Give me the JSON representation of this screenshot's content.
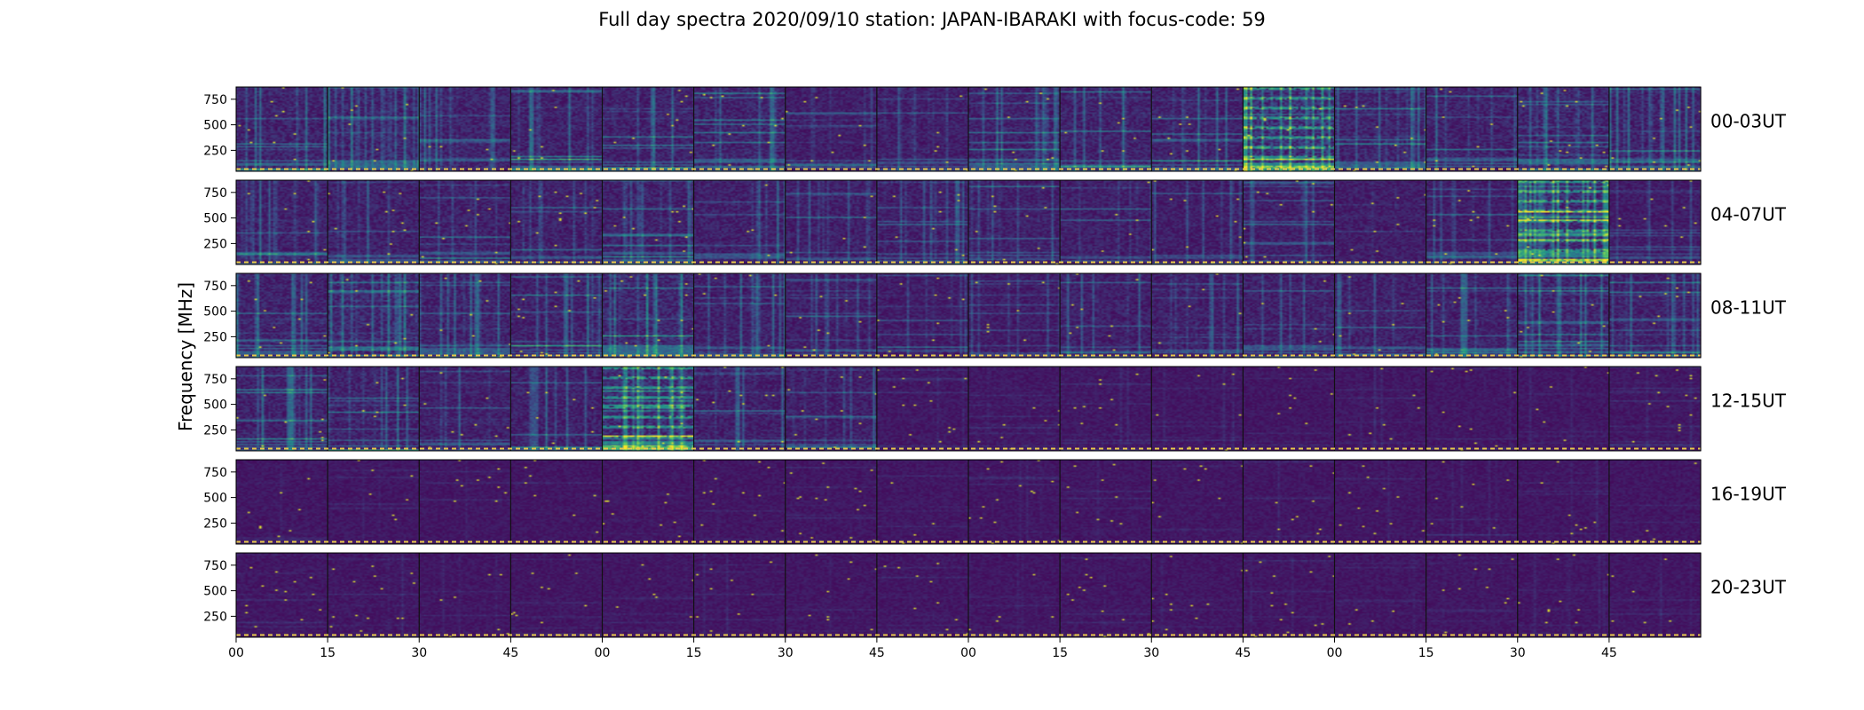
{
  "chart_data": {
    "type": "heatmap",
    "title": "Full day spectra 2020/09/10 station: JAPAN-IBARAKI with focus-code: 59",
    "ylabel": "Frequency [MHz]",
    "xlabel": "",
    "y_ticks": [
      250,
      500,
      750
    ],
    "ylim": [
      45,
      870
    ],
    "x_tick_labels": [
      "00",
      "15",
      "30",
      "45",
      "00",
      "15",
      "30",
      "45",
      "00",
      "15",
      "30",
      "45",
      "00",
      "15",
      "30",
      "45"
    ],
    "colormap": [
      "#440154",
      "#3b528b",
      "#21918c",
      "#5ec962",
      "#fde725"
    ],
    "grid": false,
    "segments_per_row": 16,
    "rows": [
      {
        "label": "00-03UT",
        "activity": [
          0.55,
          0.55,
          0.5,
          0.5,
          0.5,
          0.55,
          0.35,
          0.4,
          0.5,
          0.5,
          0.45,
          0.9,
          0.5,
          0.5,
          0.6,
          0.5
        ]
      },
      {
        "label": "04-07UT",
        "activity": [
          0.45,
          0.45,
          0.45,
          0.45,
          0.45,
          0.45,
          0.4,
          0.4,
          0.4,
          0.4,
          0.35,
          0.4,
          0.35,
          0.35,
          0.8,
          0.3
        ]
      },
      {
        "label": "08-11UT",
        "activity": [
          0.5,
          0.65,
          0.5,
          0.5,
          0.65,
          0.45,
          0.35,
          0.3,
          0.3,
          0.4,
          0.4,
          0.45,
          0.45,
          0.45,
          0.55,
          0.45
        ]
      },
      {
        "label": "12-15UT",
        "activity": [
          0.5,
          0.5,
          0.4,
          0.45,
          0.75,
          0.4,
          0.4,
          0.15,
          0.15,
          0.15,
          0.12,
          0.1,
          0.12,
          0.12,
          0.12,
          0.12
        ]
      },
      {
        "label": "16-19UT",
        "activity": [
          0.12,
          0.1,
          0.1,
          0.1,
          0.1,
          0.1,
          0.1,
          0.1,
          0.1,
          0.1,
          0.1,
          0.1,
          0.1,
          0.1,
          0.1,
          0.1
        ]
      },
      {
        "label": "20-23UT",
        "activity": [
          0.12,
          0.12,
          0.1,
          0.1,
          0.1,
          0.1,
          0.1,
          0.1,
          0.1,
          0.1,
          0.1,
          0.1,
          0.1,
          0.1,
          0.1,
          0.1
        ]
      }
    ]
  }
}
